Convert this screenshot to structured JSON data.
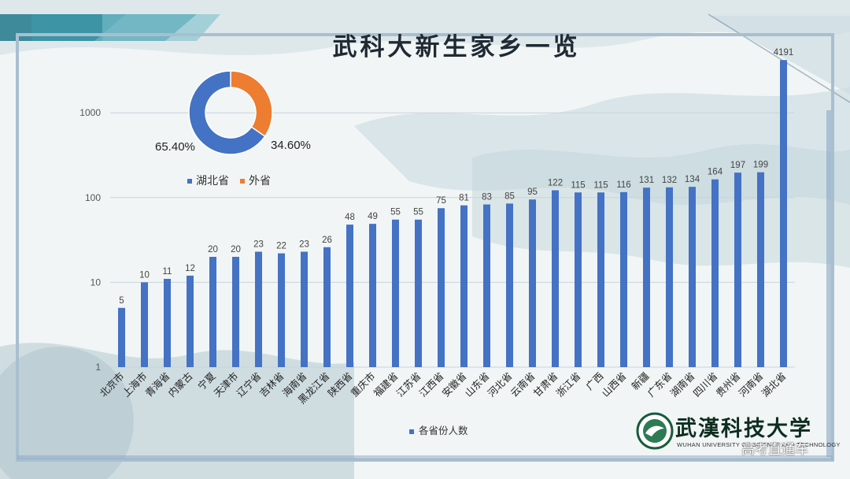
{
  "title": "武科大新生家乡一览",
  "donut": {
    "slices": [
      {
        "name": "湖北省",
        "value": 65.4,
        "color": "#4472c4",
        "label": "65.40%"
      },
      {
        "name": "外省",
        "value": 34.6,
        "color": "#ed7d31",
        "label": "34.60%"
      }
    ]
  },
  "chart_data": {
    "type": "bar",
    "yscale": "log",
    "ylim": [
      1,
      5000
    ],
    "yticks": [
      "1",
      "10",
      "100",
      "1000"
    ],
    "legend": "各省份人数",
    "color": "#4472c4",
    "categories": [
      "北京市",
      "上海市",
      "青海省",
      "内蒙古",
      "宁夏",
      "天津市",
      "辽宁省",
      "吉林省",
      "海南省",
      "黑龙江省",
      "陕西省",
      "重庆市",
      "福建省",
      "江苏省",
      "江西省",
      "安徽省",
      "山东省",
      "河北省",
      "云南省",
      "甘肃省",
      "浙江省",
      "广西",
      "山西省",
      "新疆",
      "广东省",
      "湖南省",
      "四川省",
      "贵州省",
      "河南省",
      "湖北省"
    ],
    "values": [
      5,
      10,
      11,
      12,
      20,
      20,
      23,
      22,
      23,
      26,
      48,
      49,
      55,
      55,
      75,
      81,
      83,
      85,
      95,
      122,
      115,
      115,
      116,
      131,
      132,
      134,
      164,
      197,
      199,
      4191
    ],
    "value_labels": [
      "5",
      "10",
      "11",
      "12",
      "20",
      "20",
      "23",
      "22",
      "23",
      "26",
      "48",
      "49",
      "55",
      "55",
      "75",
      "81",
      "83",
      "85",
      "95",
      "122",
      "115",
      "115",
      "116",
      "131",
      "132",
      "134",
      "164",
      "197",
      "199",
      "4191"
    ]
  },
  "logo": {
    "name": "武漢科技大学",
    "subtitle": "WUHAN UNIVERSITY OF SCIENCE AND TECHNOLOGY"
  },
  "watermark": "高考直通车"
}
